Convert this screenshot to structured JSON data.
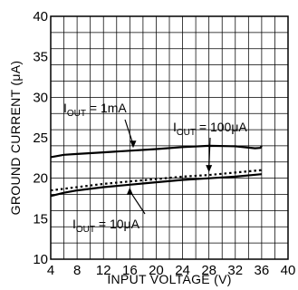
{
  "chart_data": {
    "type": "line",
    "xlabel": "INPUT  VOLTAGE (V)",
    "ylabel": "GROUND CURRENT (μA)",
    "xlim": [
      4,
      40
    ],
    "ylim": [
      10,
      40
    ],
    "xticks": [
      "4",
      "8",
      "12",
      "16",
      "20",
      "24",
      "28",
      "32",
      "36",
      "40"
    ],
    "yticks": [
      "10",
      "15",
      "20",
      "25",
      "30",
      "35",
      "40"
    ],
    "grid": true,
    "series": [
      {
        "key": "1mA",
        "style": "solid",
        "x": [
          4,
          6,
          8,
          12,
          16,
          20,
          24,
          28,
          32,
          35,
          35.8,
          36
        ],
        "y": [
          22.6,
          22.9,
          23.0,
          23.2,
          23.4,
          23.6,
          23.85,
          24.0,
          23.95,
          23.7,
          23.75,
          24.0
        ]
      },
      {
        "key": "100uA",
        "style": "dotted",
        "x": [
          4,
          8,
          12,
          16,
          20,
          24,
          28,
          32,
          36
        ],
        "y": [
          18.5,
          18.9,
          19.3,
          19.6,
          19.9,
          20.2,
          20.4,
          20.7,
          21.0
        ]
      },
      {
        "key": "10uA",
        "style": "solid",
        "x": [
          4,
          6,
          8,
          12,
          16,
          20,
          24,
          28,
          32,
          36
        ],
        "y": [
          17.8,
          18.2,
          18.5,
          18.9,
          19.2,
          19.5,
          19.8,
          20.0,
          20.2,
          20.5
        ]
      }
    ],
    "annotations": [
      {
        "id": "1mA",
        "prefix": "I",
        "sub": "OUT",
        "suffix": " = 1mA",
        "arrow_to": [
          16.5,
          23.4
        ]
      },
      {
        "id": "100uA",
        "prefix": "I",
        "sub": "OUT",
        "suffix": " = 100μA",
        "arrow_to": [
          28.0,
          20.4
        ]
      },
      {
        "id": "10uA",
        "prefix": "I",
        "sub": "OUT",
        "suffix": " = 10μA",
        "arrow_to": [
          16.0,
          19.2
        ]
      }
    ]
  }
}
